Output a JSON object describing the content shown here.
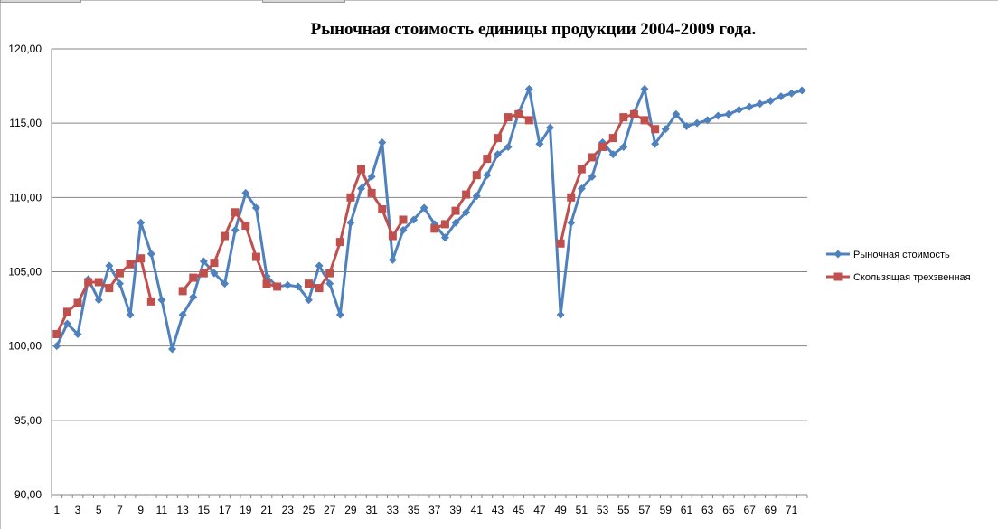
{
  "chart_data": {
    "type": "line",
    "title": "Рыночная стоимость единицы продукции 2004-2009 года.",
    "xlabel": "",
    "ylabel": "",
    "ylim": [
      90,
      120
    ],
    "yticks": [
      "90,00",
      "95,00",
      "100,00",
      "105,00",
      "110,00",
      "115,00",
      "120,00"
    ],
    "xticks": [
      1,
      3,
      5,
      7,
      9,
      11,
      13,
      15,
      17,
      19,
      21,
      23,
      25,
      27,
      29,
      31,
      33,
      35,
      37,
      39,
      41,
      43,
      45,
      47,
      49,
      51,
      53,
      55,
      57,
      59,
      61,
      63,
      65,
      67,
      69,
      71
    ],
    "grid": "horizontal",
    "legend_position": "right",
    "series": [
      {
        "name": "Рыночная стоимость",
        "color": "#4f81bd",
        "marker": "diamond",
        "values": [
          100.0,
          101.5,
          100.8,
          104.5,
          103.1,
          105.4,
          104.2,
          102.1,
          108.3,
          106.2,
          103.1,
          99.8,
          102.1,
          103.3,
          105.7,
          104.9,
          104.2,
          107.8,
          110.3,
          109.3,
          104.7,
          104.0,
          104.1,
          104.0,
          103.1,
          105.4,
          104.2,
          102.1,
          108.3,
          110.6,
          111.4,
          113.7,
          105.8,
          107.8,
          108.5,
          109.3,
          108.2,
          107.3,
          108.3,
          109.0,
          110.1,
          111.5,
          112.9,
          113.4,
          115.7,
          117.3,
          113.6,
          114.7,
          102.1,
          108.3,
          110.6,
          111.4,
          113.7,
          112.9,
          113.4,
          115.7,
          117.3,
          113.6,
          114.6,
          115.6,
          114.8,
          115.0,
          115.2,
          115.5,
          115.6,
          115.9,
          116.1,
          116.3,
          116.5,
          116.8,
          117.0,
          117.2
        ]
      },
      {
        "name": "Скользящая трехзвенная",
        "color": "#c0504d",
        "marker": "square",
        "values": [
          100.8,
          102.3,
          102.9,
          104.3,
          104.3,
          103.9,
          104.9,
          105.5,
          105.9,
          103.0,
          null,
          null,
          103.7,
          104.6,
          104.9,
          105.6,
          107.4,
          109.0,
          108.1,
          106.0,
          104.2,
          104.0,
          null,
          null,
          104.2,
          103.9,
          104.9,
          107.0,
          110.0,
          111.9,
          110.3,
          109.2,
          107.4,
          108.5,
          null,
          null,
          107.9,
          108.2,
          109.1,
          110.2,
          111.5,
          112.6,
          114.0,
          115.4,
          115.6,
          115.2,
          null,
          null,
          106.9,
          110.0,
          111.9,
          112.7,
          113.4,
          114.0,
          115.4,
          115.6,
          115.2,
          114.6,
          null,
          null,
          null,
          null,
          null,
          null,
          null,
          null,
          null,
          null,
          null,
          null,
          null,
          null
        ]
      }
    ]
  }
}
